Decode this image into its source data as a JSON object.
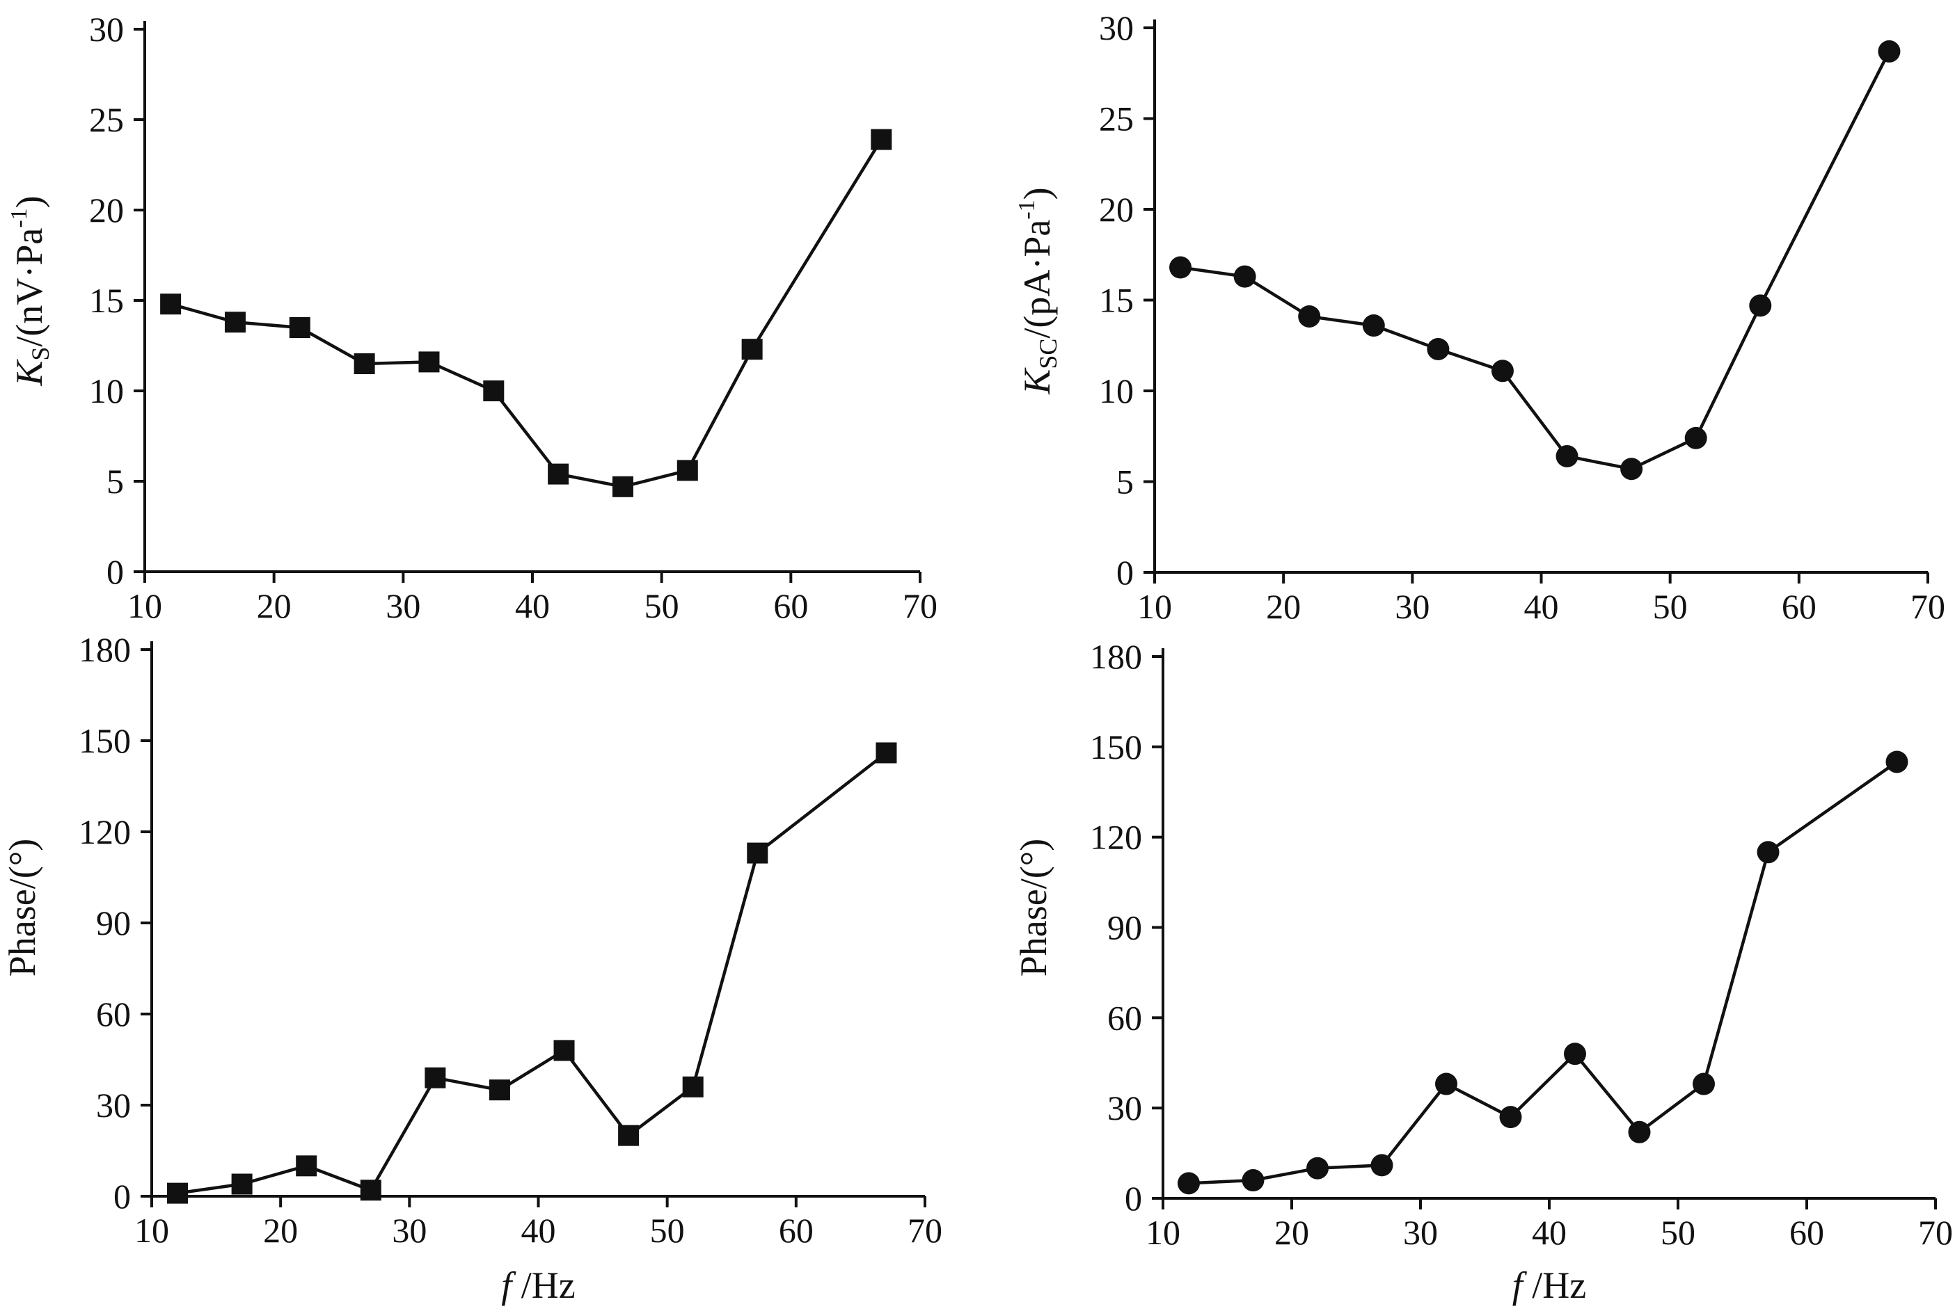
{
  "figure": {
    "background": "#ffffff",
    "ink": "#111111"
  },
  "chart_data": [
    {
      "id": "ks",
      "type": "line",
      "marker": "square",
      "x": [
        12,
        17,
        22,
        27,
        32,
        37,
        42,
        47,
        52,
        57,
        67
      ],
      "series": [
        {
          "name": "Ks",
          "values": [
            14.8,
            13.8,
            13.5,
            11.5,
            11.6,
            10.0,
            5.4,
            4.7,
            5.6,
            12.3,
            23.9
          ]
        }
      ],
      "xlim": [
        10,
        70
      ],
      "ylim": [
        0,
        30
      ],
      "xticks": [
        "10",
        "20",
        "30",
        "40",
        "50",
        "60",
        "70"
      ],
      "yticks": [
        "0",
        "5",
        "10",
        "15",
        "20",
        "25",
        "30"
      ],
      "ylabel": {
        "symbol": "K",
        "subscript": "S",
        "rest": "/(nV·Pa",
        "sup": "-1",
        "close": ")"
      },
      "xlabel": null
    },
    {
      "id": "ksc",
      "type": "line",
      "marker": "circle",
      "x": [
        12,
        17,
        22,
        27,
        32,
        37,
        42,
        47,
        52,
        57,
        67
      ],
      "series": [
        {
          "name": "Ksc",
          "values": [
            16.8,
            16.3,
            14.1,
            13.6,
            12.3,
            11.1,
            6.4,
            5.7,
            7.4,
            14.7,
            28.7
          ]
        }
      ],
      "xlim": [
        10,
        70
      ],
      "ylim": [
        0,
        30
      ],
      "xticks": [
        "10",
        "20",
        "30",
        "40",
        "50",
        "60",
        "70"
      ],
      "yticks": [
        "0",
        "5",
        "10",
        "15",
        "20",
        "25",
        "30"
      ],
      "ylabel": {
        "symbol": "K",
        "subscript": "SC",
        "rest": "/(pA·Pa",
        "sup": "-1",
        "close": ")"
      },
      "xlabel": null
    },
    {
      "id": "phase-s",
      "type": "line",
      "marker": "square",
      "x": [
        12,
        17,
        22,
        27,
        32,
        37,
        42,
        47,
        52,
        57,
        67
      ],
      "series": [
        {
          "name": "Phase",
          "values": [
            1,
            4,
            10,
            2,
            39,
            35,
            48,
            20,
            36,
            113,
            146
          ]
        }
      ],
      "xlim": [
        10,
        70
      ],
      "ylim": [
        0,
        180
      ],
      "xticks": [
        "10",
        "20",
        "30",
        "40",
        "50",
        "60",
        "70"
      ],
      "yticks": [
        "0",
        "30",
        "60",
        "90",
        "120",
        "150",
        "180"
      ],
      "ylabel": {
        "text": "Phase/(°)"
      },
      "xlabel": {
        "symbol": "f",
        "rest": " /Hz"
      }
    },
    {
      "id": "phase-sc",
      "type": "line",
      "marker": "circle",
      "x": [
        12,
        17,
        22,
        27,
        32,
        37,
        42,
        47,
        52,
        57,
        67
      ],
      "series": [
        {
          "name": "Phase",
          "values": [
            5,
            6,
            10,
            11,
            38,
            27,
            48,
            22,
            38,
            115,
            145
          ]
        }
      ],
      "xlim": [
        10,
        70
      ],
      "ylim": [
        0,
        180
      ],
      "xticks": [
        "10",
        "20",
        "30",
        "40",
        "50",
        "60",
        "70"
      ],
      "yticks": [
        "0",
        "30",
        "60",
        "90",
        "120",
        "150",
        "180"
      ],
      "ylabel": {
        "text": "Phase/(°)"
      },
      "xlabel": {
        "symbol": "f",
        "rest": " /Hz"
      }
    }
  ]
}
